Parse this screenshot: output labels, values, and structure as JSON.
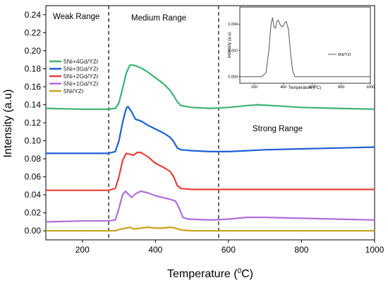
{
  "chart_data": [
    {
      "type": "line",
      "xlabel": "Temperature (",
      "xlabel_sup": "0",
      "xlabel_end": "C)",
      "ylabel": "Intensity (a.u)",
      "xlim": [
        100,
        1000
      ],
      "ylim": [
        -0.01,
        0.25
      ],
      "xticks": [
        200,
        400,
        600,
        800,
        1000
      ],
      "yticks": [
        "0.00",
        "0.02",
        "0.04",
        "0.06",
        "0.08",
        "0.10",
        "0.12",
        "0.14",
        "0.16",
        "0.18",
        "0.20",
        "0.22",
        "0.24"
      ],
      "grid": false,
      "legend_position": "left",
      "annotations": {
        "weak": "Weak Range",
        "medium": "Medium Range",
        "strong": "Strong Range"
      },
      "dividers_x": [
        272,
        573
      ],
      "series": [
        {
          "name": "5Ni+4Gd/YZr",
          "color": "#3cb371",
          "points": [
            [
              100,
              0.136
            ],
            [
              200,
              0.135
            ],
            [
              270,
              0.135
            ],
            [
              290,
              0.136
            ],
            [
              300,
              0.142
            ],
            [
              310,
              0.158
            ],
            [
              320,
              0.175
            ],
            [
              330,
              0.184
            ],
            [
              340,
              0.184
            ],
            [
              360,
              0.181
            ],
            [
              380,
              0.176
            ],
            [
              400,
              0.17
            ],
            [
              420,
              0.164
            ],
            [
              440,
              0.156
            ],
            [
              450,
              0.15
            ],
            [
              460,
              0.143
            ],
            [
              470,
              0.139
            ],
            [
              500,
              0.137
            ],
            [
              550,
              0.136
            ],
            [
              600,
              0.137
            ],
            [
              650,
              0.139
            ],
            [
              680,
              0.14
            ],
            [
              720,
              0.139
            ],
            [
              800,
              0.137
            ],
            [
              900,
              0.136
            ],
            [
              1000,
              0.135
            ]
          ]
        },
        {
          "name": "5Ni+3Gd/YZr",
          "color": "#1e5fd6",
          "points": [
            [
              100,
              0.086
            ],
            [
              200,
              0.086
            ],
            [
              270,
              0.086
            ],
            [
              290,
              0.088
            ],
            [
              300,
              0.1
            ],
            [
              310,
              0.12
            ],
            [
              320,
              0.136
            ],
            [
              325,
              0.138
            ],
            [
              335,
              0.132
            ],
            [
              345,
              0.124
            ],
            [
              360,
              0.122
            ],
            [
              380,
              0.117
            ],
            [
              400,
              0.113
            ],
            [
              420,
              0.109
            ],
            [
              440,
              0.104
            ],
            [
              450,
              0.099
            ],
            [
              460,
              0.092
            ],
            [
              470,
              0.09
            ],
            [
              500,
              0.089
            ],
            [
              550,
              0.088
            ],
            [
              600,
              0.088
            ],
            [
              650,
              0.089
            ],
            [
              700,
              0.09
            ],
            [
              800,
              0.091
            ],
            [
              900,
              0.092
            ],
            [
              1000,
              0.093
            ]
          ]
        },
        {
          "name": "5Ni+2Gd/YZr",
          "color": "#e8413a",
          "points": [
            [
              100,
              0.045
            ],
            [
              200,
              0.045
            ],
            [
              270,
              0.045
            ],
            [
              290,
              0.047
            ],
            [
              300,
              0.06
            ],
            [
              310,
              0.078
            ],
            [
              320,
              0.086
            ],
            [
              330,
              0.085
            ],
            [
              340,
              0.084
            ],
            [
              350,
              0.087
            ],
            [
              360,
              0.087
            ],
            [
              380,
              0.082
            ],
            [
              400,
              0.075
            ],
            [
              420,
              0.071
            ],
            [
              440,
              0.066
            ],
            [
              450,
              0.06
            ],
            [
              460,
              0.05
            ],
            [
              470,
              0.047
            ],
            [
              500,
              0.046
            ],
            [
              600,
              0.046
            ],
            [
              700,
              0.046
            ],
            [
              800,
              0.046
            ],
            [
              900,
              0.046
            ],
            [
              1000,
              0.046
            ]
          ]
        },
        {
          "name": "5Ni+1Gd/YZr",
          "color": "#b06fd8",
          "points": [
            [
              100,
              0.01
            ],
            [
              200,
              0.011
            ],
            [
              270,
              0.011
            ],
            [
              290,
              0.012
            ],
            [
              300,
              0.025
            ],
            [
              310,
              0.04
            ],
            [
              318,
              0.044
            ],
            [
              325,
              0.041
            ],
            [
              335,
              0.037
            ],
            [
              345,
              0.041
            ],
            [
              360,
              0.044
            ],
            [
              380,
              0.042
            ],
            [
              400,
              0.039
            ],
            [
              420,
              0.037
            ],
            [
              440,
              0.035
            ],
            [
              455,
              0.033
            ],
            [
              465,
              0.025
            ],
            [
              475,
              0.015
            ],
            [
              490,
              0.013
            ],
            [
              550,
              0.012
            ],
            [
              600,
              0.013
            ],
            [
              650,
              0.015
            ],
            [
              700,
              0.015
            ],
            [
              800,
              0.014
            ],
            [
              900,
              0.013
            ],
            [
              1000,
              0.012
            ]
          ]
        },
        {
          "name": "5Ni/YZr",
          "color": "#c8a21a",
          "points": [
            [
              100,
              0.0
            ],
            [
              200,
              0.0
            ],
            [
              290,
              0.0
            ],
            [
              305,
              0.002
            ],
            [
              320,
              0.003
            ],
            [
              330,
              0.004
            ],
            [
              340,
              0.002
            ],
            [
              360,
              0.003
            ],
            [
              380,
              0.004
            ],
            [
              400,
              0.003
            ],
            [
              420,
              0.003
            ],
            [
              440,
              0.004
            ],
            [
              455,
              0.003
            ],
            [
              470,
              0.001
            ],
            [
              500,
              0.0
            ],
            [
              600,
              0.0
            ],
            [
              800,
              0.0
            ],
            [
              1000,
              0.0
            ]
          ]
        }
      ]
    },
    {
      "type": "line",
      "xlabel": "Temperature (",
      "xlabel_sup": "0",
      "xlabel_end": "C)",
      "ylabel": "Intensity (a.u)",
      "xlim": [
        100,
        1000
      ],
      "ylim": [
        -0.0005,
        0.0053
      ],
      "xticks": [
        "200",
        "400",
        "600",
        "800",
        "1000"
      ],
      "yticks": [
        "0.000",
        "0.002",
        "0.004"
      ],
      "legend_position": "right",
      "series": [
        {
          "name": "5Ni/YZr",
          "color": "#555555",
          "points": [
            [
              100,
              0
            ],
            [
              250,
              0
            ],
            [
              280,
              0.0003
            ],
            [
              300,
              0.002
            ],
            [
              315,
              0.004
            ],
            [
              325,
              0.0045
            ],
            [
              335,
              0.0038
            ],
            [
              345,
              0.0037
            ],
            [
              355,
              0.0042
            ],
            [
              365,
              0.0043
            ],
            [
              380,
              0.0039
            ],
            [
              395,
              0.0038
            ],
            [
              410,
              0.0041
            ],
            [
              420,
              0.0042
            ],
            [
              435,
              0.0036
            ],
            [
              450,
              0.0018
            ],
            [
              465,
              0.0004
            ],
            [
              480,
              0
            ],
            [
              600,
              0
            ],
            [
              800,
              0
            ],
            [
              1000,
              0
            ]
          ]
        }
      ]
    }
  ]
}
